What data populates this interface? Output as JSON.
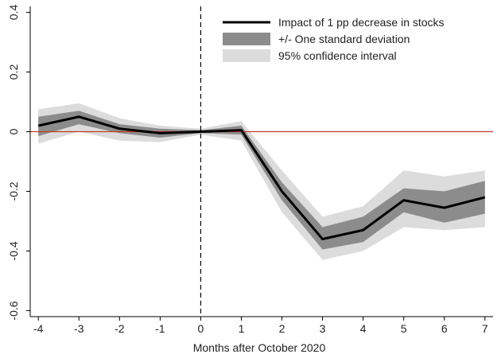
{
  "chart_data": {
    "type": "line",
    "title": "",
    "xlabel": "Months after October 2020",
    "ylabel": "",
    "x": [
      -4,
      -3,
      -2,
      -1,
      0,
      1,
      2,
      3,
      4,
      5,
      6,
      7
    ],
    "x_ticks": [
      "-4",
      "-3",
      "-2",
      "-1",
      "0",
      "1",
      "2",
      "3",
      "4",
      "5",
      "6",
      "7"
    ],
    "y_ticks": [
      "0.4",
      "0.2",
      "0",
      "-0.2",
      "-0.4",
      "-0.6"
    ],
    "y_tick_values": [
      0.4,
      0.2,
      0,
      -0.2,
      -0.4,
      -0.6
    ],
    "xlim": [
      -4.2,
      7.2
    ],
    "ylim": [
      -0.62,
      0.42
    ],
    "series": [
      {
        "name": "Impact of 1 pp decrease in stocks",
        "values": [
          0.02,
          0.05,
          0.01,
          -0.005,
          0.0,
          0.005,
          -0.2,
          -0.36,
          -0.33,
          -0.23,
          -0.255,
          -0.22
        ]
      }
    ],
    "bands": [
      {
        "name": "95% confidence interval",
        "lower": [
          -0.04,
          0.0,
          -0.03,
          -0.035,
          -0.01,
          -0.03,
          -0.27,
          -0.43,
          -0.4,
          -0.32,
          -0.33,
          -0.32
        ],
        "upper": [
          0.075,
          0.095,
          0.045,
          0.02,
          0.01,
          0.035,
          -0.13,
          -0.285,
          -0.25,
          -0.13,
          -0.15,
          -0.13
        ]
      },
      {
        "name": "+/- One standard deviation",
        "lower": [
          -0.015,
          0.025,
          -0.005,
          -0.02,
          -0.005,
          -0.01,
          -0.23,
          -0.395,
          -0.37,
          -0.27,
          -0.305,
          -0.275
        ],
        "upper": [
          0.05,
          0.07,
          0.025,
          0.01,
          0.005,
          0.02,
          -0.17,
          -0.32,
          -0.285,
          -0.19,
          -0.2,
          -0.165
        ]
      }
    ],
    "reference_lines": {
      "horizontal_y": 0,
      "horizontal_color": "#c0392b",
      "vertical_x": 0,
      "vertical_style": "dashed"
    },
    "legend": {
      "placement": "top-right",
      "entries": [
        "Impact of 1 pp decrease in stocks",
        "+/- One standard deviation",
        "95% confidence interval"
      ]
    },
    "colors": {
      "line": "#000000",
      "sd_band": "#8c8c8c",
      "ci_band": "#dcdcdc",
      "zero_line": "#c0392b"
    },
    "grid": false
  }
}
